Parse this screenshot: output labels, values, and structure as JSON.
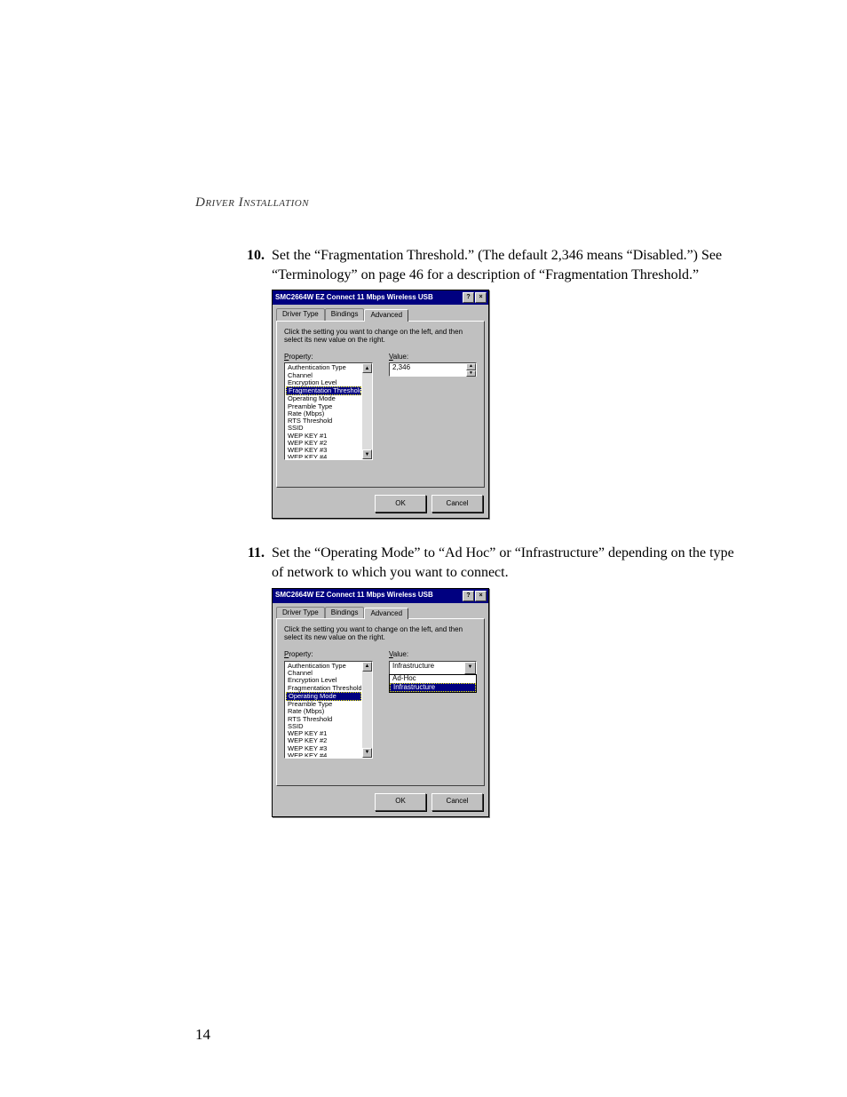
{
  "header": {
    "running_head": "Driver Installation"
  },
  "steps": [
    {
      "num": "10.",
      "text": "Set the “Fragmentation Threshold.” (The default 2,346 means “Disabled.”) See “Terminology” on page 46 for a description of “Fragmentation Threshold.”"
    },
    {
      "num": "11.",
      "text": "Set the “Operating Mode” to “Ad Hoc” or “Infrastructure” depending on the type of network to which you want to connect."
    }
  ],
  "dialog_common": {
    "title": "SMC2664W EZ Connect 11 Mbps Wireless USB",
    "help_btn": "?",
    "close_btn": "×",
    "tabs": {
      "t1": "Driver Type",
      "t2": "Bindings",
      "t3": "Advanced"
    },
    "instruction": "Click the setting you want to change on the left, and then select its new value on the right.",
    "property_label_u": "P",
    "property_label_rest": "roperty:",
    "value_label_u": "V",
    "value_label_rest": "alue:",
    "ok": "OK",
    "cancel": "Cancel",
    "up_arrow": "▲",
    "down_arrow": "▼"
  },
  "property_items": [
    "Authentication Type",
    "Channel",
    "Encryption Level",
    "Fragmentation Threshold",
    "Operating Mode",
    "Preamble Type",
    "Rate (Mbps)",
    "RTS Threshold",
    "SSID",
    "WEP KEY #1",
    "WEP KEY #2",
    "WEP KEY #3",
    "WEP KEY #4"
  ],
  "dialog1": {
    "selected_index": 3,
    "value": "2,346"
  },
  "dialog2": {
    "selected_index": 4,
    "combo_value": "Infrastructure",
    "dropdown": [
      "Ad-Hoc",
      "Infrastructure"
    ],
    "dropdown_selected": 1
  },
  "page_number": "14",
  "colors": {
    "titlebar_bg": "#000080",
    "dialog_bg": "#c0c0c0",
    "selection_bg": "#000080",
    "page_bg": "#ffffff"
  }
}
